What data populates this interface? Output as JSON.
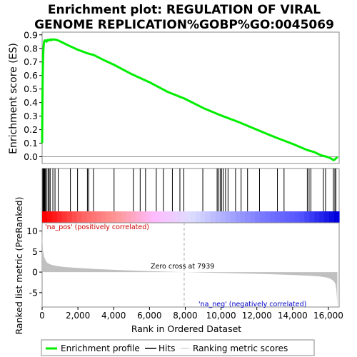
{
  "chart_data": {
    "type": "line",
    "title_line1": "Enrichment plot: REGULATION OF VIRAL",
    "title_line2": "GENOME REPLICATION%GOBP%GO:0045069",
    "es_panel": {
      "ylabel": "Enrichment score (ES)",
      "ylim": [
        -0.05,
        0.92
      ],
      "yticks": [
        "0.0",
        "0.1",
        "0.2",
        "0.3",
        "0.4",
        "0.5",
        "0.6",
        "0.7",
        "0.8",
        "0.9"
      ],
      "ytick_values": [
        0.0,
        0.1,
        0.2,
        0.3,
        0.4,
        0.5,
        0.6,
        0.7,
        0.8,
        0.9
      ],
      "series_name": "Enrichment profile",
      "line_color": "#00ee00",
      "x": [
        0,
        15,
        30,
        50,
        70,
        90,
        110,
        130,
        160,
        200,
        250,
        300,
        350,
        400,
        450,
        500,
        550,
        600,
        700,
        800,
        900,
        1000,
        1500,
        2000,
        2500,
        2900,
        3500,
        4000,
        5000,
        6000,
        7000,
        7939,
        9000,
        10000,
        11000,
        12000,
        13000,
        14000,
        14800,
        15200,
        15600,
        15900,
        16100,
        16300,
        16400,
        16500
      ],
      "y": [
        0.1,
        0.4,
        0.6,
        0.72,
        0.79,
        0.83,
        0.85,
        0.855,
        0.86,
        0.855,
        0.85,
        0.862,
        0.858,
        0.862,
        0.866,
        0.86,
        0.864,
        0.866,
        0.865,
        0.863,
        0.858,
        0.852,
        0.82,
        0.79,
        0.765,
        0.75,
        0.71,
        0.68,
        0.61,
        0.55,
        0.48,
        0.43,
        0.36,
        0.305,
        0.255,
        0.2,
        0.145,
        0.095,
        0.05,
        0.035,
        0.01,
        0.0,
        -0.01,
        -0.025,
        -0.015,
        0.0
      ]
    },
    "hits": [
      40,
      60,
      80,
      100,
      120,
      140,
      160,
      180,
      250,
      330,
      390,
      450,
      600,
      720,
      900,
      1580,
      1980,
      2530,
      2600,
      2870,
      4020,
      5100,
      5480,
      5780,
      6380,
      6780,
      7280,
      7700,
      7920,
      8980,
      9780,
      9840,
      9950,
      10030,
      10120,
      10250,
      10390,
      10810,
      11120,
      11480,
      12150,
      13150,
      13520,
      14820,
      14920,
      15020,
      15720,
      15840,
      16280,
      16360,
      16420
    ],
    "gradient_colors": [
      "#ff0000",
      "#ff6060",
      "#ff9999",
      "#ffbbff",
      "#ddddff",
      "#aaaaff",
      "#7777ff",
      "#5555ff",
      "#0000dd"
    ],
    "metric_panel": {
      "ylabel": "Ranked list metric (PreRanked)",
      "ylim": [
        -8.5,
        12
      ],
      "yticks": [
        "-5",
        "0",
        "5",
        "10"
      ],
      "ytick_values": [
        -5,
        0,
        5,
        10
      ],
      "x": [
        0,
        10,
        40,
        100,
        200,
        300,
        500,
        800,
        1200,
        2000,
        3000,
        4000,
        5000,
        6000,
        7000,
        7939,
        9000,
        10000,
        11000,
        12000,
        13000,
        14000,
        15000,
        15500,
        15900,
        16100,
        16300,
        16400,
        16450,
        16480,
        16500
      ],
      "y": [
        11.5,
        8.5,
        5.5,
        3.8,
        2.8,
        2.2,
        1.8,
        1.5,
        1.25,
        1.0,
        0.75,
        0.55,
        0.38,
        0.22,
        0.1,
        0.0,
        -0.12,
        -0.22,
        -0.32,
        -0.42,
        -0.55,
        -0.7,
        -0.9,
        -1.05,
        -1.3,
        -1.6,
        -2.2,
        -3.0,
        -4.5,
        -6.5,
        -8.0
      ],
      "fill_color": "#c0c0c0",
      "pos_label": "'na_pos' (positively correlated)",
      "neg_label": "'na_neg' (negatively correlated)",
      "zero_cross_label": "Zero cross at 7939",
      "zero_cross_x": 7939
    },
    "xlabel": "Rank in Ordered Dataset",
    "xlim": [
      0,
      16600
    ],
    "xticks": [
      "0",
      "2,000",
      "4,000",
      "6,000",
      "8,000",
      "10,000",
      "12,000",
      "14,000",
      "16,000"
    ],
    "xtick_values": [
      0,
      2000,
      4000,
      6000,
      8000,
      10000,
      12000,
      14000,
      16000
    ],
    "legend": {
      "entries": [
        {
          "label": "Enrichment profile",
          "color": "#00ee00"
        },
        {
          "label": "Hits",
          "color": "#000000"
        },
        {
          "label": "Ranking metric scores",
          "color": "#c0c0c0"
        }
      ]
    }
  }
}
